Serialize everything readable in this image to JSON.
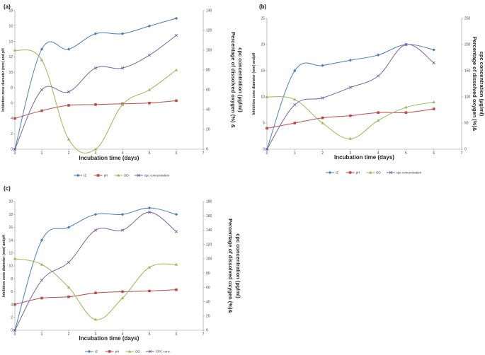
{
  "colors": {
    "IZ": "#4a7ebb",
    "pH": "#be4b48",
    "DO": "#98b954",
    "CPC": "#7d60a0"
  },
  "chart_data": [
    {
      "type": "line",
      "panel": "(a)",
      "xlabel": "Incubation time (days)",
      "ylabel_left": "Inhibition zone diameter (mm) and pH",
      "ylabel_right_line1": "Percentage of dissolved oxygen (%) &",
      "ylabel_right_line2": "cpc concentration (µg/ml)",
      "xlim": [
        0,
        7
      ],
      "ylim_left": [
        0,
        18
      ],
      "ylim_right": [
        0,
        140
      ],
      "x_ticks": [
        0,
        1,
        2,
        3,
        4,
        5,
        6,
        7
      ],
      "y_left_ticks": [
        0,
        2,
        4,
        6,
        8,
        10,
        12,
        14,
        16,
        18
      ],
      "y_right_ticks": [
        0,
        20,
        40,
        60,
        80,
        100,
        120,
        140
      ],
      "x": [
        0,
        1,
        2,
        3,
        4,
        5,
        6
      ],
      "series": [
        {
          "name": "IZ",
          "key": "IZ",
          "axis": "left",
          "marker": "diamond",
          "values": [
            0,
            13,
            13,
            15,
            15,
            16,
            17
          ]
        },
        {
          "name": "pH",
          "key": "pH",
          "axis": "left",
          "marker": "square",
          "values": [
            4,
            5,
            5.7,
            5.8,
            5.9,
            6,
            6.3
          ]
        },
        {
          "name": "DO",
          "key": "DO",
          "axis": "right",
          "marker": "triangle",
          "values": [
            100,
            90,
            10,
            0,
            45,
            60,
            80
          ]
        },
        {
          "name": "cpc concentration",
          "key": "CPC",
          "axis": "right",
          "marker": "x",
          "values": [
            0,
            60,
            58,
            82,
            82,
            95,
            115
          ]
        }
      ]
    },
    {
      "type": "line",
      "panel": "(b)",
      "xlabel": "Incubation time (days)",
      "ylabel_left": "Inhibition zone diameter (mm) andpH",
      "ylabel_right_line1": "Percentage of dissolved oxygen (%)&",
      "ylabel_right_line2": "cpc concentration (µg/ml)",
      "xlim": [
        0,
        7
      ],
      "ylim_left": [
        0,
        25
      ],
      "ylim_right": [
        0,
        250
      ],
      "x_ticks": [
        0,
        1,
        2,
        3,
        4,
        5,
        6,
        7
      ],
      "y_left_ticks": [
        0,
        5,
        10,
        15,
        20,
        25
      ],
      "y_right_ticks": [
        0,
        50,
        100,
        150,
        200,
        250
      ],
      "x": [
        0,
        1,
        2,
        3,
        4,
        5,
        6
      ],
      "series": [
        {
          "name": "IZ",
          "key": "IZ",
          "axis": "left",
          "marker": "diamond",
          "values": [
            0,
            15,
            16,
            17,
            18,
            20,
            19
          ]
        },
        {
          "name": "pH",
          "key": "pH",
          "axis": "left",
          "marker": "square",
          "values": [
            4,
            5,
            6,
            6.4,
            7,
            7,
            7.7
          ]
        },
        {
          "name": "DO",
          "key": "DO",
          "axis": "right",
          "marker": "triangle",
          "values": [
            100,
            95,
            50,
            20,
            55,
            80,
            90
          ]
        },
        {
          "name": "cpc concentration",
          "key": "CPC",
          "axis": "right",
          "marker": "x",
          "values": [
            0,
            85,
            98,
            118,
            140,
            200,
            165
          ]
        }
      ]
    },
    {
      "type": "line",
      "panel": "(c)",
      "xlabel": "Incubation time (days)",
      "ylabel_left": "Inhibition zone diameter (mm) andpH",
      "ylabel_right_line1": "Percentage of dissolved oxygen (%)&",
      "ylabel_right_line2": "cpc concentration (µg/ml)",
      "xlim": [
        0,
        7
      ],
      "ylim_left": [
        0,
        20
      ],
      "ylim_right": [
        0,
        180
      ],
      "x_ticks": [
        0,
        1,
        2,
        3,
        4,
        5,
        6,
        7
      ],
      "y_left_ticks": [
        0,
        2,
        4,
        6,
        8,
        10,
        12,
        14,
        16,
        18,
        20
      ],
      "y_right_ticks": [
        0,
        20,
        40,
        60,
        80,
        100,
        120,
        140,
        160,
        180
      ],
      "x": [
        0,
        1,
        2,
        3,
        4,
        5,
        6
      ],
      "series": [
        {
          "name": "IZ",
          "key": "IZ",
          "axis": "left",
          "marker": "diamond",
          "values": [
            0,
            14,
            16,
            18,
            18,
            19,
            18
          ]
        },
        {
          "name": "pH",
          "key": "pH",
          "axis": "left",
          "marker": "square",
          "values": [
            4,
            5,
            5.2,
            5.8,
            6,
            6.1,
            6.3
          ]
        },
        {
          "name": "DO",
          "key": "DO",
          "axis": "right",
          "marker": "triangle",
          "values": [
            100,
            92,
            60,
            15,
            45,
            88,
            92
          ]
        },
        {
          "name": "CPC conc.",
          "key": "CPC",
          "axis": "right",
          "marker": "x",
          "values": [
            0,
            70,
            95,
            140,
            140,
            165,
            138
          ]
        }
      ]
    }
  ]
}
